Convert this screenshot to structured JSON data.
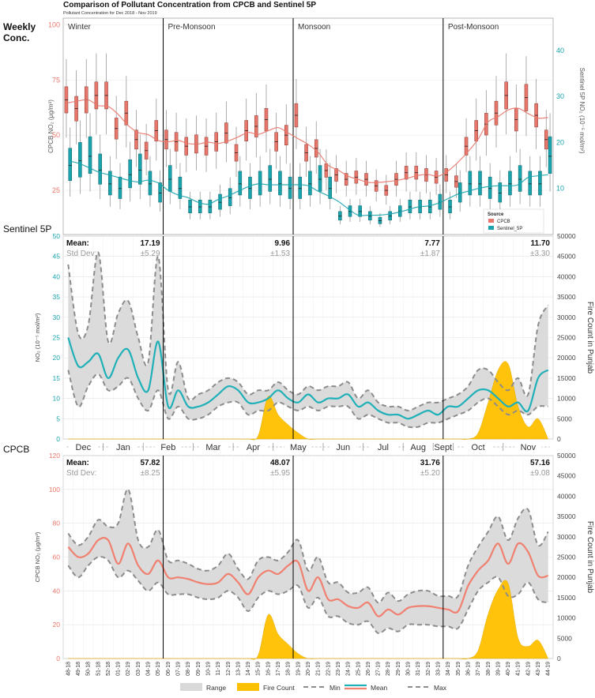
{
  "title": "Comparison of Pollutant Concentration from CPCB and Sentinel 5P",
  "subtitle": "Pollutant Concentration for Dec 2018 - Nov 2019",
  "side_labels": {
    "weekly": [
      "Weekly",
      "Conc."
    ],
    "sentinel": "Sentinel 5P",
    "cpcb": "CPCB"
  },
  "colors": {
    "cpcb": "#e8776b",
    "sentinel": "#1aa3ad",
    "range": "#d9d9d9",
    "fire": "#ffc000",
    "minmax": "#8c8c8c",
    "mean_line": "#20b0b8",
    "cpcb_mean_line": "#f08070"
  },
  "legend_bottom": [
    "Range",
    "Fire Count",
    "Min",
    "Mean",
    "Max"
  ],
  "chart_data": [
    {
      "type": "boxplot",
      "title": "Weekly Conc.",
      "ylabel_left": "CPCB NO₂ (μg/m³)",
      "ylabel_right": "Sentinel 5P NO₂ (10⁻⁵ mol/m²)",
      "ylim_left": [
        5,
        103
      ],
      "ylim_right": [
        0,
        47
      ],
      "yticks_left": [
        25,
        50,
        75,
        100
      ],
      "yticks_right": [
        10,
        20,
        30,
        40
      ],
      "seasons": [
        "Winter",
        "Pre-Monsoon",
        "Monsoon",
        "Post-Monsoon"
      ],
      "season_boundaries": [
        10,
        23,
        38
      ],
      "legend": {
        "title": "Source",
        "items": [
          "CPCB",
          "Sentinel_5P"
        ]
      },
      "series": [
        {
          "name": "CPCB",
          "medians": [
            66,
            62,
            66,
            68,
            68,
            53,
            60,
            48,
            43,
            52,
            48,
            47,
            45,
            46,
            45,
            47,
            51,
            42,
            52,
            54,
            57,
            47,
            50,
            59,
            42,
            44,
            34,
            32,
            30,
            31,
            30,
            27,
            25,
            30,
            33,
            33,
            32,
            31,
            32,
            29,
            45,
            52,
            55,
            60,
            68,
            57,
            67,
            59,
            48
          ]
        },
        {
          "name": "Sentinel_5P",
          "medians": [
            15,
            16,
            17,
            14,
            11,
            10,
            13,
            14,
            11,
            9,
            12,
            10,
            6,
            6,
            6,
            7,
            8,
            11,
            10,
            11,
            12,
            11,
            10,
            10,
            11,
            12,
            10,
            4,
            5,
            5,
            4,
            3,
            4,
            5,
            6,
            6,
            6,
            7,
            6,
            9,
            11,
            11,
            10,
            9,
            11,
            12,
            11,
            11,
            17
          ]
        }
      ]
    },
    {
      "type": "area+line",
      "title": "Sentinel 5P",
      "ylabel_left": "NO₂ (10⁻⁵ mol/m²)",
      "ylabel_right": "Fire Count in Punjab",
      "ylim_left": [
        0,
        50
      ],
      "ylim_right": [
        0,
        50000
      ],
      "yticks_left": [
        0,
        5,
        10,
        15,
        20,
        25,
        30,
        35,
        40,
        45,
        50
      ],
      "yticks_right": [
        0,
        5000,
        10000,
        15000,
        20000,
        25000,
        30000,
        35000,
        40000,
        45000,
        50000
      ],
      "months": [
        "Dec",
        "Jan",
        "Feb",
        "Mar",
        "Apr",
        "May",
        "Jun",
        "Jul",
        "Aug",
        "Sept",
        "Oct",
        "Nov"
      ],
      "season_stats": [
        {
          "label": "Mean:",
          "mean": "17.19",
          "std_label": "Std Dev:",
          "std": "±5.29"
        },
        {
          "mean": "9.96",
          "std": "±1.53"
        },
        {
          "mean": "7.77",
          "std": "±1.87"
        },
        {
          "mean": "11.70",
          "std": "±3.30"
        }
      ],
      "series": [
        {
          "name": "Mean",
          "values": [
            25,
            18,
            19,
            21,
            15,
            20,
            22,
            15,
            12,
            24,
            8,
            12,
            8,
            8,
            9,
            11,
            13,
            12,
            9,
            9,
            10,
            12,
            10,
            9,
            11,
            9,
            10,
            10,
            11,
            8,
            9,
            7,
            6,
            6,
            5,
            6,
            7,
            6,
            8,
            8,
            10,
            12,
            12,
            10,
            8,
            9,
            7,
            15,
            17
          ]
        },
        {
          "name": "Min",
          "values": [
            17,
            8,
            13,
            16,
            12,
            13,
            15,
            10,
            7,
            12,
            5,
            8,
            5,
            5,
            6,
            8,
            9,
            9,
            6,
            7,
            7,
            9,
            8,
            7,
            8,
            7,
            8,
            8,
            8,
            5,
            6,
            5,
            4,
            4,
            3,
            3,
            4,
            4,
            5,
            6,
            7,
            9,
            10,
            8,
            6,
            7,
            6,
            8,
            8
          ]
        },
        {
          "name": "Max",
          "values": [
            43,
            26,
            28,
            46,
            24,
            31,
            34,
            25,
            19,
            45,
            12,
            19,
            10,
            11,
            12,
            14,
            15,
            14,
            11,
            12,
            12,
            14,
            12,
            11,
            13,
            12,
            13,
            13,
            14,
            10,
            12,
            9,
            8,
            8,
            7,
            8,
            9,
            9,
            10,
            11,
            13,
            17,
            17,
            14,
            12,
            15,
            11,
            28,
            33
          ]
        },
        {
          "name": "Fire Count",
          "values": [
            0,
            0,
            0,
            0,
            0,
            0,
            0,
            0,
            0,
            0,
            0,
            0,
            0,
            0,
            0,
            0,
            0,
            0,
            0,
            800,
            10500,
            6000,
            3500,
            1500,
            0,
            0,
            0,
            0,
            0,
            0,
            0,
            0,
            0,
            0,
            0,
            0,
            0,
            0,
            0,
            0,
            0,
            1500,
            9000,
            17000,
            18500,
            8000,
            3000,
            5000,
            0
          ]
        }
      ]
    },
    {
      "type": "area+line",
      "title": "CPCB",
      "ylabel_left": "CPCB NO₂ (μg/m³)",
      "ylabel_right": "Fire Count in Punjab",
      "ylim_left": [
        0,
        120
      ],
      "ylim_right": [
        0,
        50000
      ],
      "yticks_left": [
        0,
        20,
        40,
        60,
        80,
        100,
        120
      ],
      "yticks_right": [
        0,
        5000,
        10000,
        15000,
        20000,
        25000,
        30000,
        35000,
        40000,
        45000,
        50000
      ],
      "season_stats": [
        {
          "label": "Mean:",
          "mean": "57.82",
          "std_label": "Std Dev:",
          "std": "±8.25"
        },
        {
          "mean": "48.07",
          "std": "±5.95"
        },
        {
          "mean": "31.76",
          "std": "±5.20"
        },
        {
          "mean": "57.16",
          "std": "±9.08"
        }
      ],
      "series": [
        {
          "name": "Mean",
          "values": [
            66,
            60,
            62,
            70,
            70,
            56,
            68,
            55,
            50,
            58,
            48,
            48,
            47,
            45,
            44,
            45,
            50,
            45,
            38,
            48,
            52,
            50,
            55,
            57,
            40,
            48,
            35,
            35,
            31,
            30,
            33,
            25,
            29,
            26,
            30,
            31,
            31,
            30,
            29,
            28,
            43,
            52,
            58,
            68,
            56,
            68,
            63,
            49,
            49
          ]
        },
        {
          "name": "Min",
          "values": [
            55,
            48,
            55,
            60,
            58,
            48,
            52,
            46,
            40,
            45,
            38,
            38,
            38,
            36,
            35,
            36,
            40,
            36,
            28,
            36,
            40,
            38,
            40,
            43,
            30,
            36,
            25,
            25,
            21,
            20,
            22,
            15,
            18,
            16,
            20,
            20,
            20,
            19,
            19,
            18,
            29,
            40,
            45,
            48,
            37,
            38,
            45,
            35,
            33
          ]
        },
        {
          "name": "Max",
          "values": [
            74,
            67,
            72,
            82,
            78,
            80,
            100,
            70,
            66,
            76,
            58,
            58,
            56,
            53,
            52,
            55,
            62,
            53,
            47,
            58,
            60,
            58,
            63,
            70,
            52,
            60,
            45,
            45,
            39,
            39,
            42,
            33,
            39,
            34,
            38,
            40,
            40,
            37,
            37,
            37,
            55,
            66,
            75,
            84,
            70,
            83,
            88,
            67,
            75
          ]
        },
        {
          "name": "Fire Count",
          "values": [
            0,
            0,
            0,
            0,
            0,
            0,
            0,
            0,
            0,
            0,
            0,
            0,
            0,
            0,
            0,
            0,
            0,
            0,
            0,
            800,
            10800,
            6000,
            3500,
            1200,
            0,
            0,
            0,
            0,
            0,
            0,
            0,
            0,
            0,
            0,
            0,
            0,
            0,
            0,
            0,
            0,
            0,
            2000,
            11000,
            17000,
            18500,
            5000,
            3000,
            4500,
            0
          ]
        }
      ],
      "x_ticks": [
        "48-18",
        "49-18",
        "50-18",
        "51-18",
        "52-18",
        "01-19",
        "02-19",
        "03-19",
        "04-19",
        "05-19",
        "06-19",
        "07-19",
        "08-19",
        "09-19",
        "10-19",
        "11-19",
        "12-19",
        "13-19",
        "14-19",
        "15-19",
        "16-19",
        "17-19",
        "18-19",
        "19-19",
        "20-19",
        "21-19",
        "22-19",
        "23-19",
        "24-19",
        "25-19",
        "26-19",
        "27-19",
        "28-19",
        "29-19",
        "30-19",
        "31-19",
        "32-19",
        "33-19",
        "34-19",
        "35-19",
        "36-19",
        "37-19",
        "38-19",
        "39-19",
        "40-19",
        "41-19",
        "42-19",
        "43-19",
        "44-19"
      ]
    }
  ]
}
